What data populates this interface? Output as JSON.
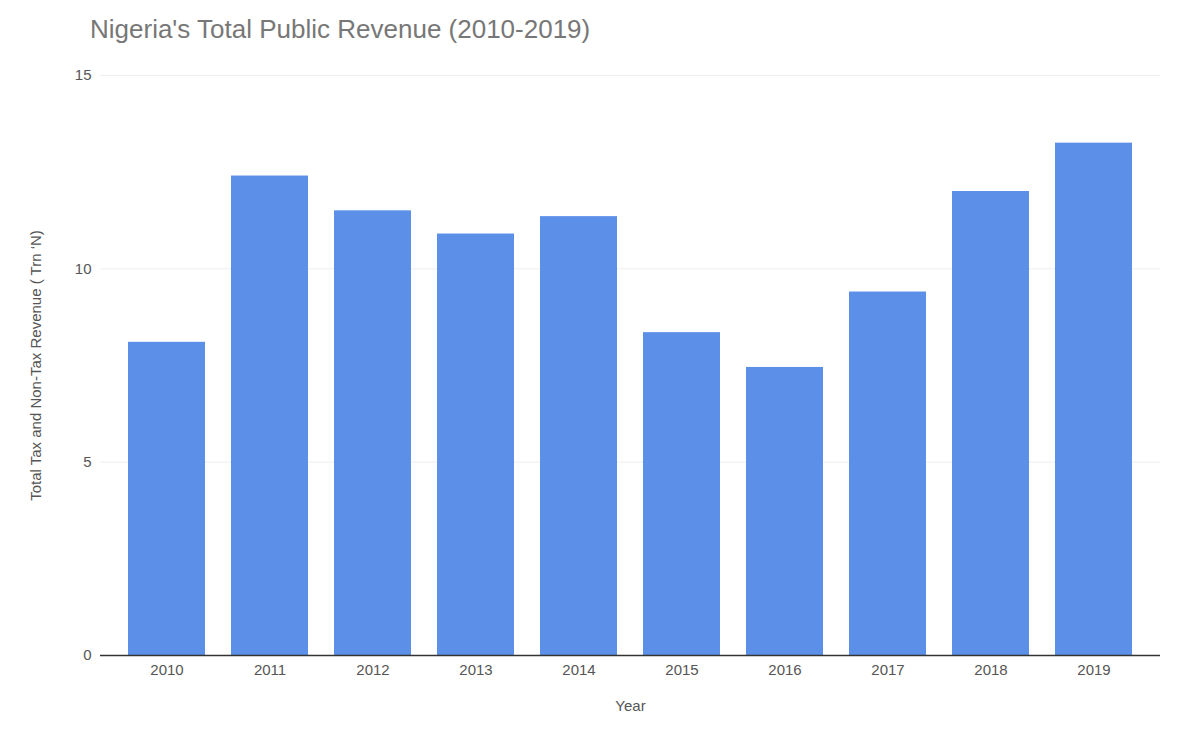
{
  "chart_data": {
    "type": "bar",
    "title": "Nigeria's Total Public Revenue (2010-2019)",
    "xlabel": "Year",
    "ylabel": "Total Tax and Non-Tax Revenue ( Trn ‘N)",
    "categories": [
      "2010",
      "2011",
      "2012",
      "2013",
      "2014",
      "2015",
      "2016",
      "2017",
      "2018",
      "2019"
    ],
    "values": [
      8.1,
      12.4,
      11.5,
      10.9,
      11.35,
      8.35,
      7.45,
      9.4,
      12.0,
      13.25
    ],
    "color": "#5B8FE8",
    "ylim": [
      0,
      15
    ],
    "yticks": [
      0,
      5,
      10,
      15
    ],
    "grid": true
  }
}
